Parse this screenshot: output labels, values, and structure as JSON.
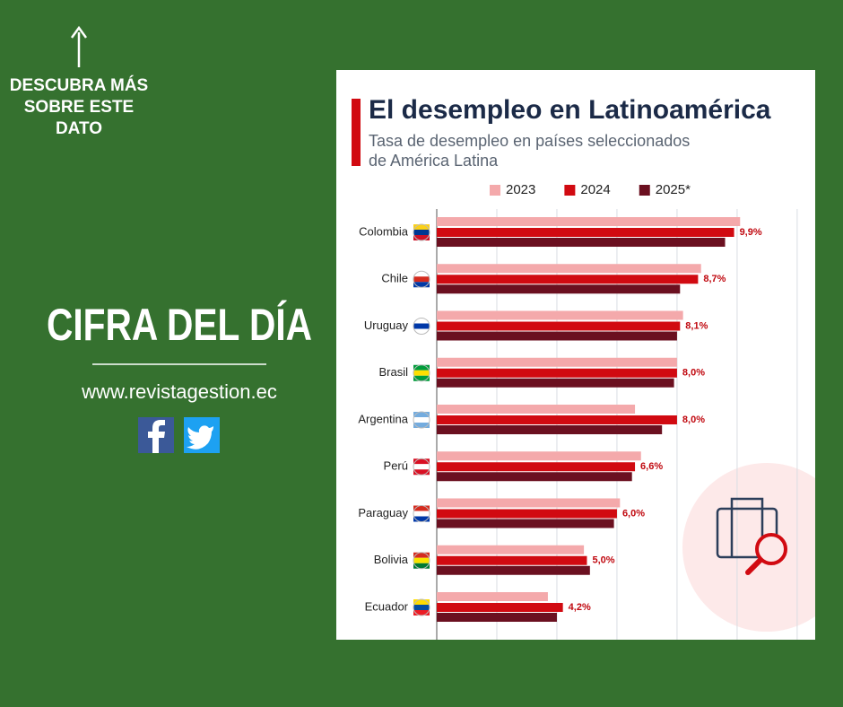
{
  "promo": {
    "cta": [
      "DESCUBRA MÁS",
      "SOBRE ESTE",
      "DATO"
    ],
    "headline": "CIFRA DEL DÍA",
    "url": "www.revistagestion.ec"
  },
  "chart_data": {
    "type": "grouped-hbar",
    "title": "El desempleo en Latinoamérica",
    "subtitle": [
      "Tasa de desempleo en países seleccionados",
      "de América Latina"
    ],
    "categories": [
      "Colombia",
      "Chile",
      "Uruguay",
      "Brasil",
      "Argentina",
      "Perú",
      "Paraguay",
      "Bolivia",
      "Ecuador"
    ],
    "series": [
      {
        "name": "2023",
        "color": "#f4a9ab",
        "values": [
          10.1,
          8.8,
          8.2,
          8.0,
          6.6,
          6.8,
          6.1,
          4.9,
          3.7
        ]
      },
      {
        "name": "2024",
        "color": "#d10a11",
        "values": [
          9.9,
          8.7,
          8.1,
          8.0,
          8.0,
          6.6,
          6.0,
          5.0,
          4.2
        ],
        "value_labels": [
          "9,9%",
          "8,7%",
          "8,1%",
          "8,0%",
          "8,0%",
          "6,6%",
          "6,0%",
          "5,0%",
          "4,2%"
        ]
      },
      {
        "name": "2025*",
        "color": "#6b1020",
        "values": [
          9.6,
          8.1,
          8.0,
          7.9,
          7.5,
          6.5,
          5.9,
          5.1,
          4.0
        ]
      }
    ],
    "xlim": [
      0,
      12.6
    ],
    "xticks": [
      0,
      2,
      4,
      6,
      8,
      10,
      12
    ],
    "grid": true,
    "legend": "top"
  }
}
